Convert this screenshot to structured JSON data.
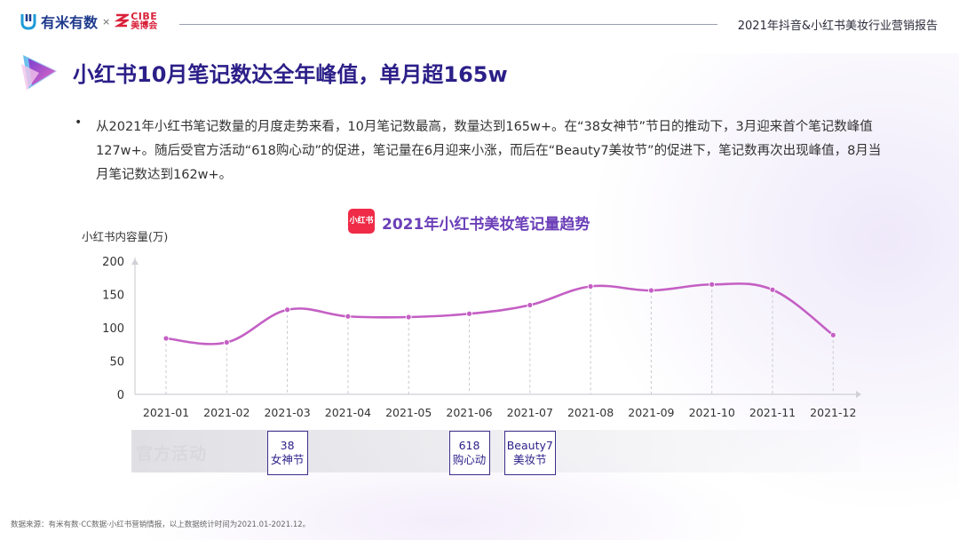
{
  "header": {
    "brand": "有米有数",
    "separator": "×",
    "partner_top": "CIBE",
    "partner_bottom": "美博会",
    "report_title": "2021年抖音&小红书美妆行业营销报告"
  },
  "page_title": "小红书10月笔记数达全年峰值，单月超165w",
  "bullet": "•",
  "paragraph": "从2021年小红书笔记数量的月度走势来看，10月笔记数最高，数量达到165w+。在“38女神节”节日的推动下，3月迎来首个笔记数峰值127w+。随后受官方活动“618购心动”的促进，笔记量在6月迎来小涨，而后在“Beauty7美妆节”的促进下，笔记数再次出现峰值，8月当月笔记数达到162w+。",
  "chart_badge": "小红书",
  "band_label": "官方活动",
  "events": [
    {
      "month": "2021-03",
      "line1": "38",
      "line2": "女神节"
    },
    {
      "month": "2021-06",
      "line1": "618",
      "line2": "购心动"
    },
    {
      "month": "2021-07",
      "line1": "Beauty7",
      "line2": "美妆节"
    }
  ],
  "footer": "数据来源：有米有数·CC数据·小红书营销情报，以上数据统计时间为2021.01-2021.12。",
  "colors": {
    "line": "#c45fc4",
    "title": "#2b1f88",
    "accent": "#6b3fb8"
  },
  "chart_data": {
    "type": "line",
    "title": "2021年小红书美妆笔记量趋势",
    "ylabel": "小红书内容量(万)",
    "xlabel": "",
    "categories": [
      "2021-01",
      "2021-02",
      "2021-03",
      "2021-04",
      "2021-05",
      "2021-06",
      "2021-07",
      "2021-08",
      "2021-09",
      "2021-10",
      "2021-11",
      "2021-12"
    ],
    "series": [
      {
        "values": [
          84,
          78,
          127,
          117,
          116,
          121,
          134,
          162,
          156,
          165,
          157,
          89
        ]
      }
    ],
    "ylim": [
      0,
      200
    ],
    "yticks": [
      0,
      50,
      100,
      150,
      200
    ],
    "grid": "vertical-dashed",
    "legend": "none"
  }
}
